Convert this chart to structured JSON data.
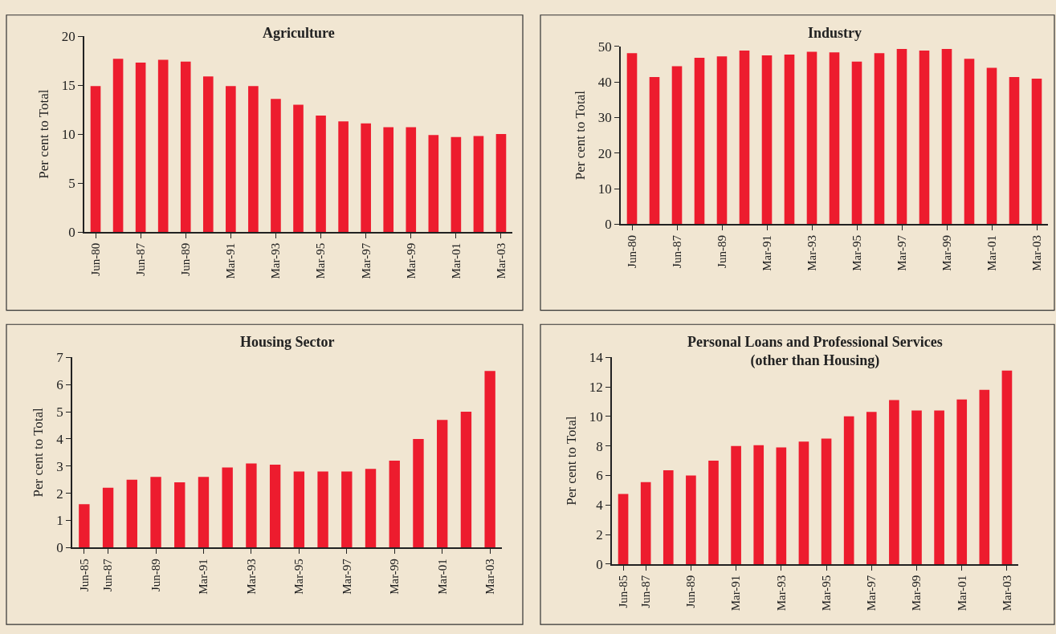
{
  "chart_data": [
    {
      "type": "bar",
      "title": "Agriculture",
      "ylabel": "Per cent to Total",
      "color": "#ed1c2e",
      "ylim": [
        0,
        20
      ],
      "yticks": [
        0,
        5,
        10,
        15,
        20
      ],
      "categories": [
        "Jun-80",
        null,
        "Jun-87",
        null,
        "Jun-89",
        null,
        "Mar-91",
        null,
        "Mar-93",
        null,
        "Mar-95",
        null,
        "Mar-97",
        null,
        "Mar-99",
        null,
        "Mar-01",
        null,
        "Mar-03"
      ],
      "values": [
        14.9,
        17.7,
        17.3,
        17.6,
        17.4,
        15.9,
        14.9,
        14.9,
        13.6,
        13.0,
        11.9,
        11.3,
        11.1,
        10.7,
        10.7,
        9.9,
        9.7,
        9.8,
        10.0
      ]
    },
    {
      "type": "bar",
      "title": "Industry",
      "ylabel": "Per cent to Total",
      "color": "#ed1c2e",
      "ylim": [
        0,
        50
      ],
      "yticks": [
        0,
        10,
        20,
        30,
        40,
        50
      ],
      "categories": [
        "Jun-80",
        null,
        "Jun-87",
        null,
        "Jun-89",
        null,
        "Mar-91",
        null,
        "Mar-93",
        null,
        "Mar-95",
        null,
        "Mar-97",
        null,
        "Mar-99",
        null,
        "Mar-01",
        null,
        "Mar-03"
      ],
      "values": [
        48.1,
        41.4,
        44.4,
        46.8,
        47.2,
        48.8,
        47.5,
        47.7,
        48.5,
        48.3,
        45.7,
        48.1,
        49.3,
        48.8,
        49.3,
        46.5,
        44.0,
        41.4,
        40.9
      ]
    },
    {
      "type": "bar",
      "title": "Housing Sector",
      "ylabel": "Per cent to Total",
      "color": "#ed1c2e",
      "ylim": [
        0,
        7
      ],
      "yticks": [
        0,
        1,
        2,
        3,
        4,
        5,
        6,
        7
      ],
      "categories": [
        "Jun-85",
        "Jun-87",
        null,
        "Jun-89",
        null,
        "Mar-91",
        null,
        "Mar-93",
        null,
        "Mar-95",
        null,
        "Mar-97",
        null,
        "Mar-99",
        null,
        "Mar-01",
        null,
        "Mar-03"
      ],
      "values": [
        1.6,
        2.2,
        2.5,
        2.6,
        2.4,
        2.6,
        2.95,
        3.1,
        3.05,
        2.8,
        2.8,
        2.8,
        2.9,
        3.2,
        4.0,
        4.7,
        5.0,
        6.5
      ]
    },
    {
      "type": "bar",
      "title": "Personal Loans and Professional Services\n(other than Housing)",
      "ylabel": "Per cent to Total",
      "color": "#ed1c2e",
      "ylim": [
        0,
        14
      ],
      "yticks": [
        0,
        2,
        4,
        6,
        8,
        10,
        12,
        14
      ],
      "categories": [
        "Jun-85",
        "Jun-87",
        null,
        "Jun-89",
        null,
        "Mar-91",
        null,
        "Mar-93",
        null,
        "Mar-95",
        null,
        "Mar-97",
        null,
        "Mar-99",
        null,
        "Mar-01",
        null,
        "Mar-03"
      ],
      "values": [
        4.75,
        5.55,
        6.35,
        6.0,
        7.0,
        8.0,
        8.05,
        7.9,
        8.3,
        8.5,
        10.0,
        10.3,
        11.1,
        10.4,
        10.4,
        11.15,
        11.8,
        13.1
      ]
    }
  ]
}
